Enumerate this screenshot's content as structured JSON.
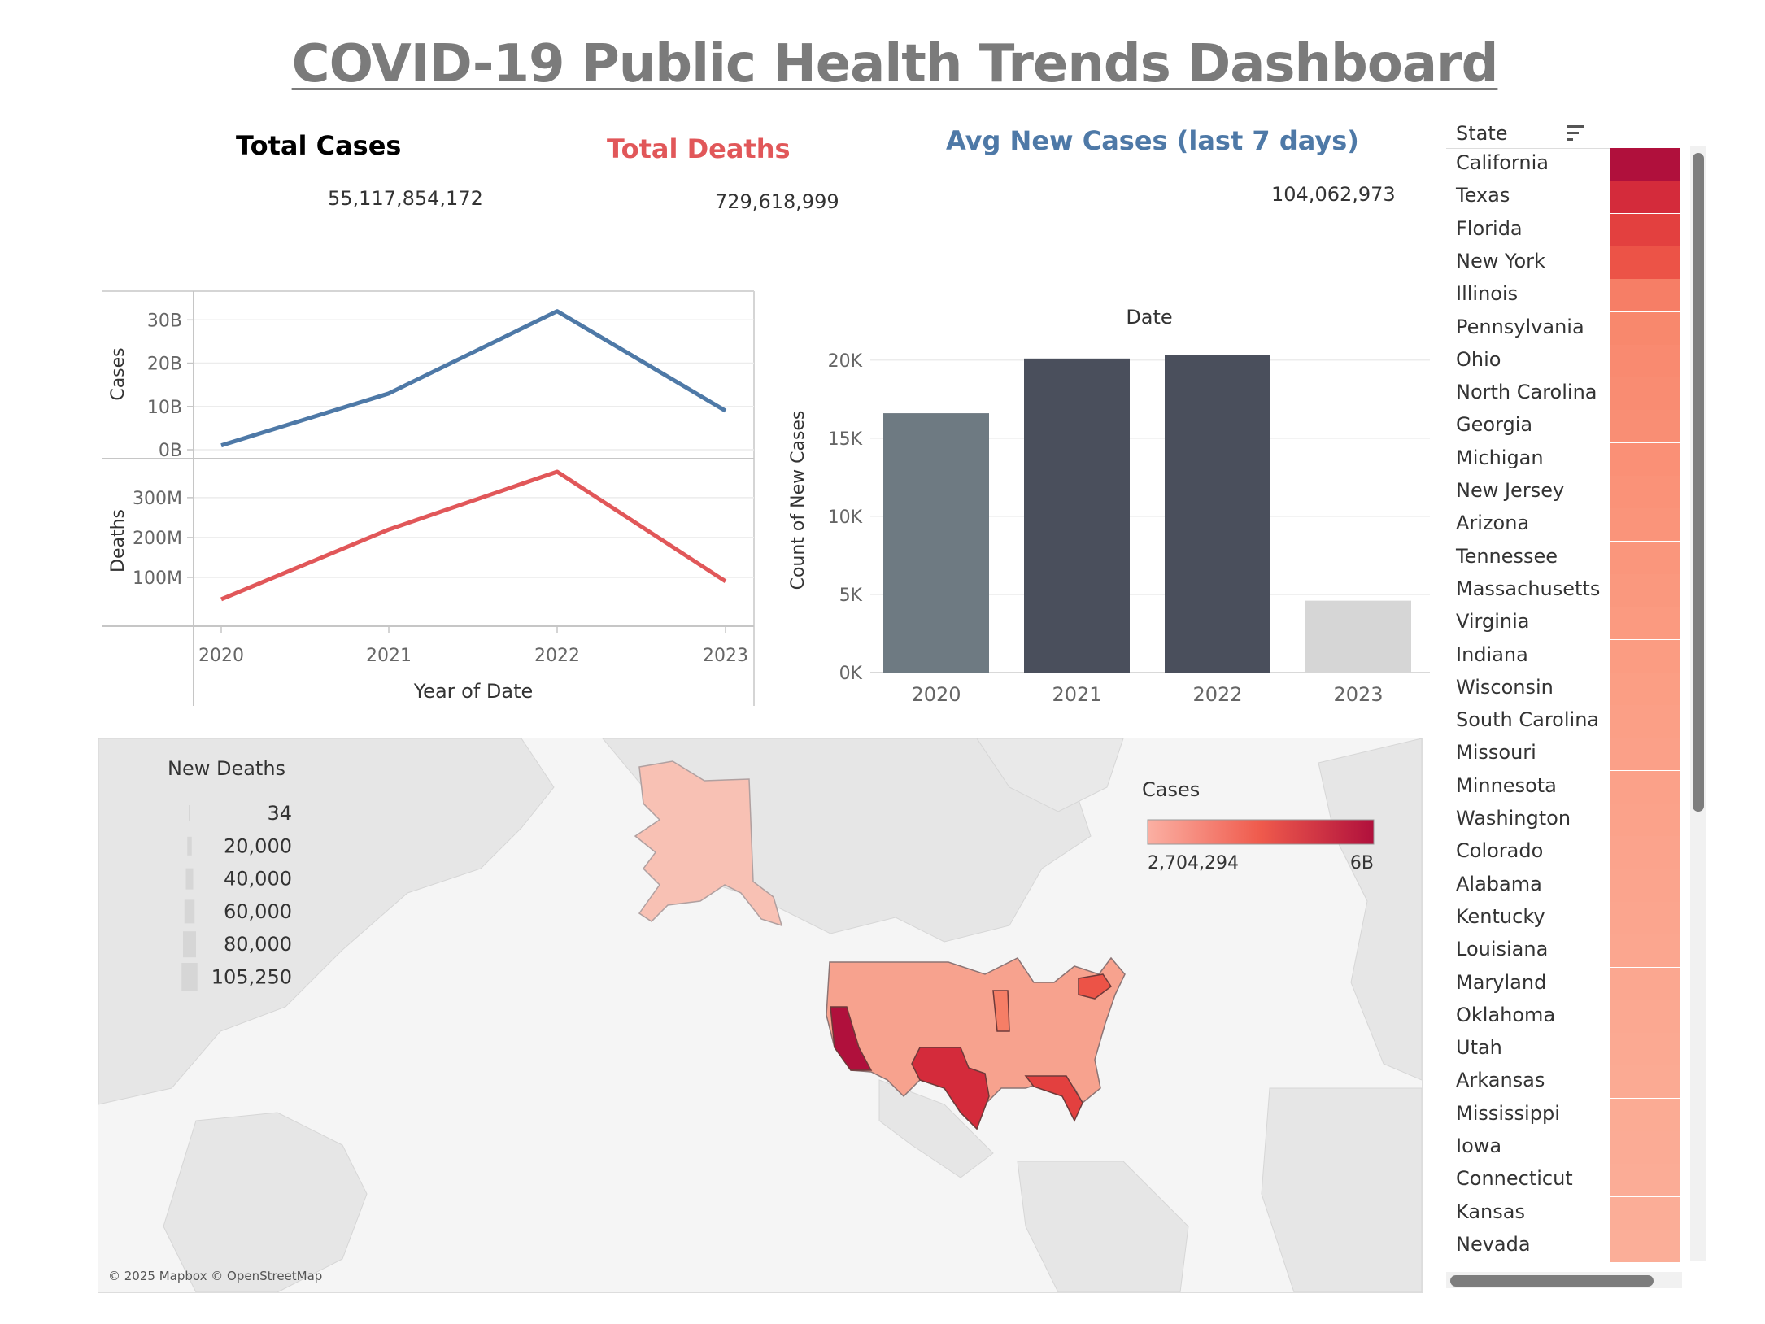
{
  "title": "COVID-19 Public Health Trends Dashboard",
  "kpis": {
    "total_cases": {
      "label": "Total Cases",
      "value": "55,117,854,172"
    },
    "total_deaths": {
      "label": "Total Deaths",
      "value": "729,618,999"
    },
    "avg_new_cases": {
      "label": "Avg New Cases (last 7 days)",
      "value": "104,062,973"
    }
  },
  "colors": {
    "cases_line": "#4e79a7",
    "deaths_line": "#e15759",
    "bar_2020": "#6e7a82",
    "bar_dark": "#4a4f5c",
    "bar_2023": "#d6d6d6",
    "heat_low": "#fbb0a3",
    "heat_high": "#b0103c"
  },
  "chart_data": [
    {
      "type": "line",
      "x": [
        "2020",
        "2021",
        "2022",
        "2023"
      ],
      "xlabel": "Year of Date",
      "panes": [
        {
          "name": "Cases",
          "ylabel": "Cases",
          "values": [
            1000000000.0,
            13000000000.0,
            32000000000.0,
            9000000000.0
          ],
          "ylim": [
            0,
            32500000000.0
          ],
          "ticks": [
            {
              "v": 0,
              "label": "0B"
            },
            {
              "v": 10000000000.0,
              "label": "10B"
            },
            {
              "v": 20000000000.0,
              "label": "20B"
            },
            {
              "v": 30000000000.0,
              "label": "30B"
            }
          ]
        },
        {
          "name": "Deaths",
          "ylabel": "Deaths",
          "values": [
            45000000,
            220000000,
            365000000,
            90000000
          ],
          "ylim": [
            0,
            365000000
          ],
          "ticks": [
            {
              "v": 100000000,
              "label": "100M"
            },
            {
              "v": 200000000,
              "label": "200M"
            },
            {
              "v": 300000000,
              "label": "300M"
            }
          ]
        }
      ],
      "grid": true
    },
    {
      "type": "bar",
      "title": "Date",
      "categories": [
        "2020",
        "2021",
        "2022",
        "2023"
      ],
      "values": [
        16600,
        20100,
        20300,
        4600
      ],
      "ylabel": "Count of New Cases",
      "ylim": [
        0,
        20300
      ],
      "ticks": [
        {
          "v": 0,
          "label": "0K"
        },
        {
          "v": 5000,
          "label": "5K"
        },
        {
          "v": 10000,
          "label": "10K"
        },
        {
          "v": 15000,
          "label": "15K"
        },
        {
          "v": 20000,
          "label": "20K"
        }
      ],
      "grid": true
    },
    {
      "type": "heatmap",
      "header": "State",
      "rows": [
        {
          "state": "California",
          "color": "#b0103c"
        },
        {
          "state": "Texas",
          "color": "#d42b3b"
        },
        {
          "state": "Florida",
          "color": "#e3403f"
        },
        {
          "state": "New York",
          "color": "#ec5347"
        },
        {
          "state": "Illinois",
          "color": "#f67e66"
        },
        {
          "state": "Pennsylvania",
          "color": "#f8886d"
        },
        {
          "state": "Ohio",
          "color": "#f98a70"
        },
        {
          "state": "North Carolina",
          "color": "#f98c72"
        },
        {
          "state": "Georgia",
          "color": "#f98e74"
        },
        {
          "state": "Michigan",
          "color": "#fa9076"
        },
        {
          "state": "New Jersey",
          "color": "#fa9278"
        },
        {
          "state": "Arizona",
          "color": "#fa947a"
        },
        {
          "state": "Tennessee",
          "color": "#fa967c"
        },
        {
          "state": "Massachusetts",
          "color": "#fa987e"
        },
        {
          "state": "Virginia",
          "color": "#fb9a80"
        },
        {
          "state": "Indiana",
          "color": "#fb9c82"
        },
        {
          "state": "Wisconsin",
          "color": "#fb9e84"
        },
        {
          "state": "South Carolina",
          "color": "#fb9f86"
        },
        {
          "state": "Missouri",
          "color": "#fba088"
        },
        {
          "state": "Minnesota",
          "color": "#fba189"
        },
        {
          "state": "Washington",
          "color": "#fba28a"
        },
        {
          "state": "Colorado",
          "color": "#fba38c"
        },
        {
          "state": "Alabama",
          "color": "#fba48d"
        },
        {
          "state": "Kentucky",
          "color": "#fba58e"
        },
        {
          "state": "Louisiana",
          "color": "#fba68f"
        },
        {
          "state": "Maryland",
          "color": "#fba790"
        },
        {
          "state": "Oklahoma",
          "color": "#fba891"
        },
        {
          "state": "Utah",
          "color": "#fba992"
        },
        {
          "state": "Arkansas",
          "color": "#fbaa93"
        },
        {
          "state": "Mississippi",
          "color": "#fbab94"
        },
        {
          "state": "Iowa",
          "color": "#fbab95"
        },
        {
          "state": "Connecticut",
          "color": "#fbac96"
        },
        {
          "state": "Kansas",
          "color": "#fbad97"
        },
        {
          "state": "Nevada",
          "color": "#fbae98"
        }
      ]
    },
    {
      "type": "map",
      "legend_size": {
        "title": "New Deaths",
        "entries": [
          "34",
          "20,000",
          "40,000",
          "60,000",
          "80,000",
          "105,250"
        ]
      },
      "legend_color": {
        "title": "Cases",
        "min_label": "2,704,294",
        "max_label": "6B"
      },
      "attribution": "© 2025 Mapbox © OpenStreetMap"
    }
  ]
}
